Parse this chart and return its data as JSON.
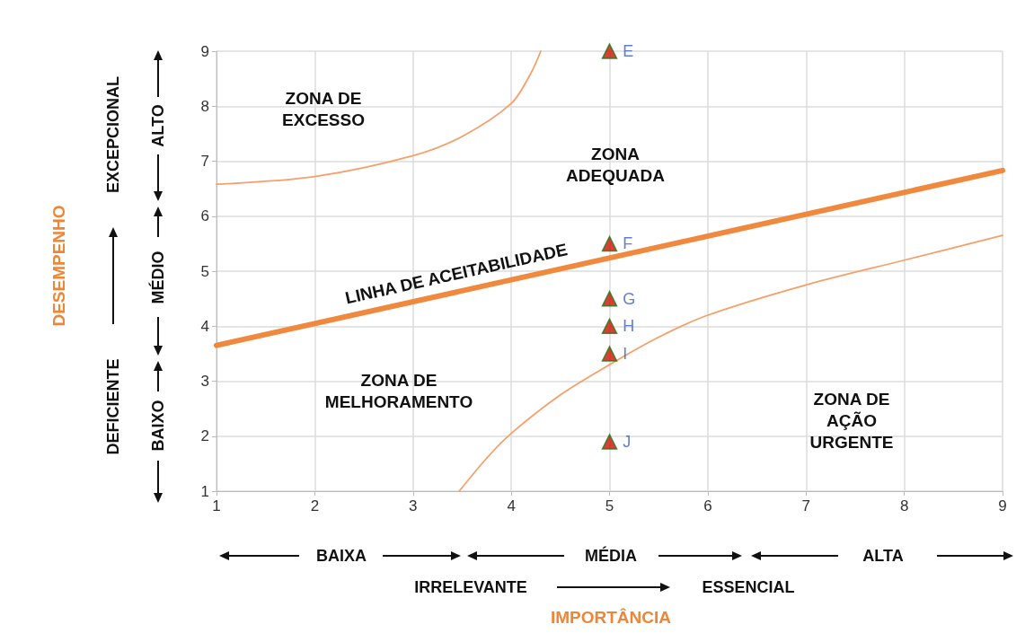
{
  "chart_data": {
    "type": "line",
    "xlim": [
      1,
      9
    ],
    "ylim": [
      1,
      9
    ],
    "xticks": [
      1,
      2,
      3,
      4,
      5,
      6,
      7,
      8,
      9
    ],
    "yticks": [
      1,
      2,
      3,
      4,
      5,
      6,
      7,
      8,
      9
    ],
    "grid": true,
    "legend": false,
    "marker": "none",
    "series": [
      {
        "name": "LINHA DE ACEITABILIDADE",
        "color": "#f0883e",
        "x": [
          1,
          9
        ],
        "values": [
          3.65,
          6.83
        ]
      },
      {
        "color": "#f5a06a",
        "x": [
          1,
          2,
          3,
          3.5,
          4,
          4.2,
          4.3
        ],
        "values": [
          6.58,
          6.72,
          7.1,
          7.45,
          8.05,
          8.6,
          9.0
        ]
      },
      {
        "color": "#f5a06a",
        "x": [
          3.47,
          3.75,
          4,
          4.5,
          5,
          5.5,
          6,
          7,
          8,
          9
        ],
        "values": [
          1,
          1.6,
          2.05,
          2.75,
          3.3,
          3.8,
          4.2,
          4.75,
          5.2,
          5.65
        ]
      },
      {
        "type": "scatter",
        "color": "#cc1100",
        "marker": "triangle",
        "x": [
          5,
          5,
          5,
          5,
          5,
          5
        ],
        "values": [
          9,
          5.5,
          4.5,
          4.0,
          3.5,
          1.9
        ],
        "value_labels": [
          "E",
          "F",
          "G",
          "H",
          "I",
          "J"
        ]
      }
    ],
    "annotations": [
      "ZONA DE\nEXCESSO",
      "ZONA\nADEQUADA",
      "ZONA DE\nMELHORAMENTO",
      "ZONA DE\nAÇÃO\nURGENTE",
      "BAIXA",
      "MÉDIA",
      "ALTA",
      "IRRELEVANTE",
      "ESSENCIAL",
      "ALTO",
      "MÉDIO",
      "BAIXO",
      "EXCEPCIONAL",
      "DEFICIENTE",
      "IMPORTÂNCIA",
      "DESEMPENHO"
    ]
  }
}
